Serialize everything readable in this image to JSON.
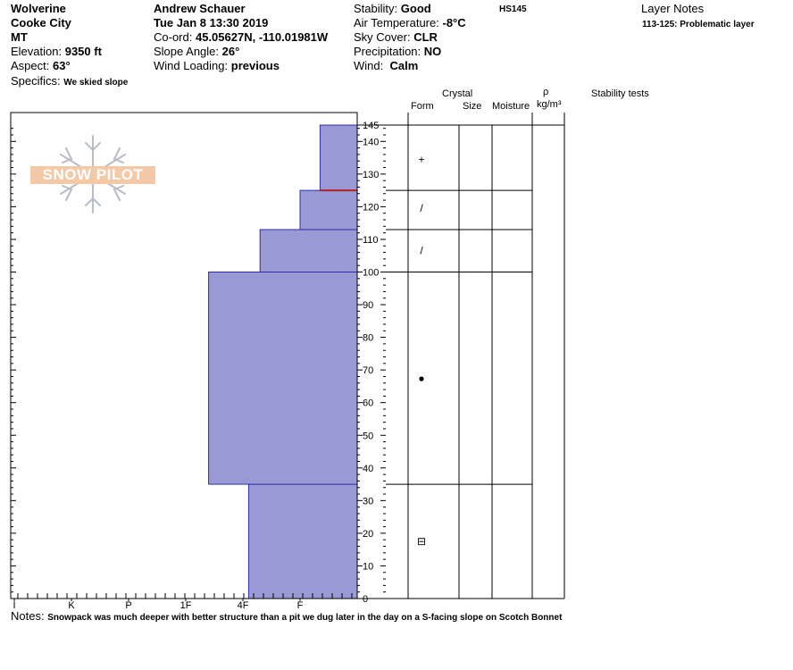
{
  "header": {
    "location": "Wolverine",
    "region": "Cooke City",
    "state": "MT",
    "elevation_label": "Elevation:",
    "elevation_value": "9350 ft",
    "aspect_label": "Aspect:",
    "aspect_value": "63°",
    "specifics_label": "Specifics:",
    "specifics_value": "We skied slope",
    "observer": "Andrew Schauer",
    "datetime": "Tue Jan 8 13:30 2019",
    "coord_label": "Co-ord:",
    "coord_value": "45.05627N, -110.01981W",
    "slope_label": "Slope Angle:",
    "slope_value": "26°",
    "wind_loading_label": "Wind Loading:",
    "wind_loading_value": "previous",
    "stability_label": "Stability:",
    "stability_value": "Good",
    "test_code": "HS145",
    "air_temp_label": "Air Temperature:",
    "air_temp_value": "-8°C",
    "sky_label": "Sky Cover:",
    "sky_value": "CLR",
    "precip_label": "Precipitation:",
    "precip_value": "NO",
    "wind_label": "Wind:",
    "wind_value": "Calm",
    "layer_notes_title": "Layer Notes",
    "layer_note": "113-125: Problematic layer"
  },
  "columns": {
    "crystal": "Crystal",
    "form": "Form",
    "size": "Size",
    "moisture": "Moisture",
    "rho": "ρ",
    "density_unit": "kg/m³",
    "stability_tests": "Stability tests"
  },
  "watermark": "SNOW PILOT",
  "notes_label": "Notes:",
  "notes_value": "Snowpack was much deeper with better structure than a pit we dug later in the day on a S-facing slope on Scotch Bonnet",
  "colors": {
    "layer_fill": "#9999d6",
    "layer_stroke": "#2f2fa8",
    "problem_line": "#b22222",
    "watermark": "#f3c9a8"
  },
  "chart_data": {
    "type": "bar",
    "orientation": "horizontal",
    "xlabel": "",
    "ylabel": "",
    "hardness_scale": [
      "I",
      "K",
      "P",
      "1F",
      "4F",
      "F"
    ],
    "hardness_index": {
      "F": 1,
      "4F": 2,
      "1F": 3,
      "P": 4,
      "K": 5,
      "I": 6
    },
    "ylim": [
      0,
      145
    ],
    "y_ticks": [
      0,
      10,
      20,
      30,
      40,
      50,
      60,
      70,
      80,
      90,
      100,
      110,
      120,
      130,
      140,
      145
    ],
    "layers": [
      {
        "bottom": 0,
        "top": 35,
        "hardness": 1.9
      },
      {
        "bottom": 35,
        "top": 100,
        "hardness": 2.6
      },
      {
        "bottom": 100,
        "top": 113,
        "hardness": 1.7
      },
      {
        "bottom": 113,
        "top": 125,
        "hardness": 1.0
      },
      {
        "bottom": 125,
        "top": 145,
        "hardness": 0.65
      }
    ],
    "problematic_layer": {
      "bottom": 113,
      "top": 125
    },
    "grain_forms": [
      {
        "depth": 134.5,
        "symbol": "+"
      },
      {
        "depth": 119.5,
        "symbol": "/"
      },
      {
        "depth": 106.5,
        "symbol": "/"
      },
      {
        "depth": 67.5,
        "symbol": "●"
      },
      {
        "depth": 17.5,
        "symbol": "⊟"
      }
    ]
  }
}
